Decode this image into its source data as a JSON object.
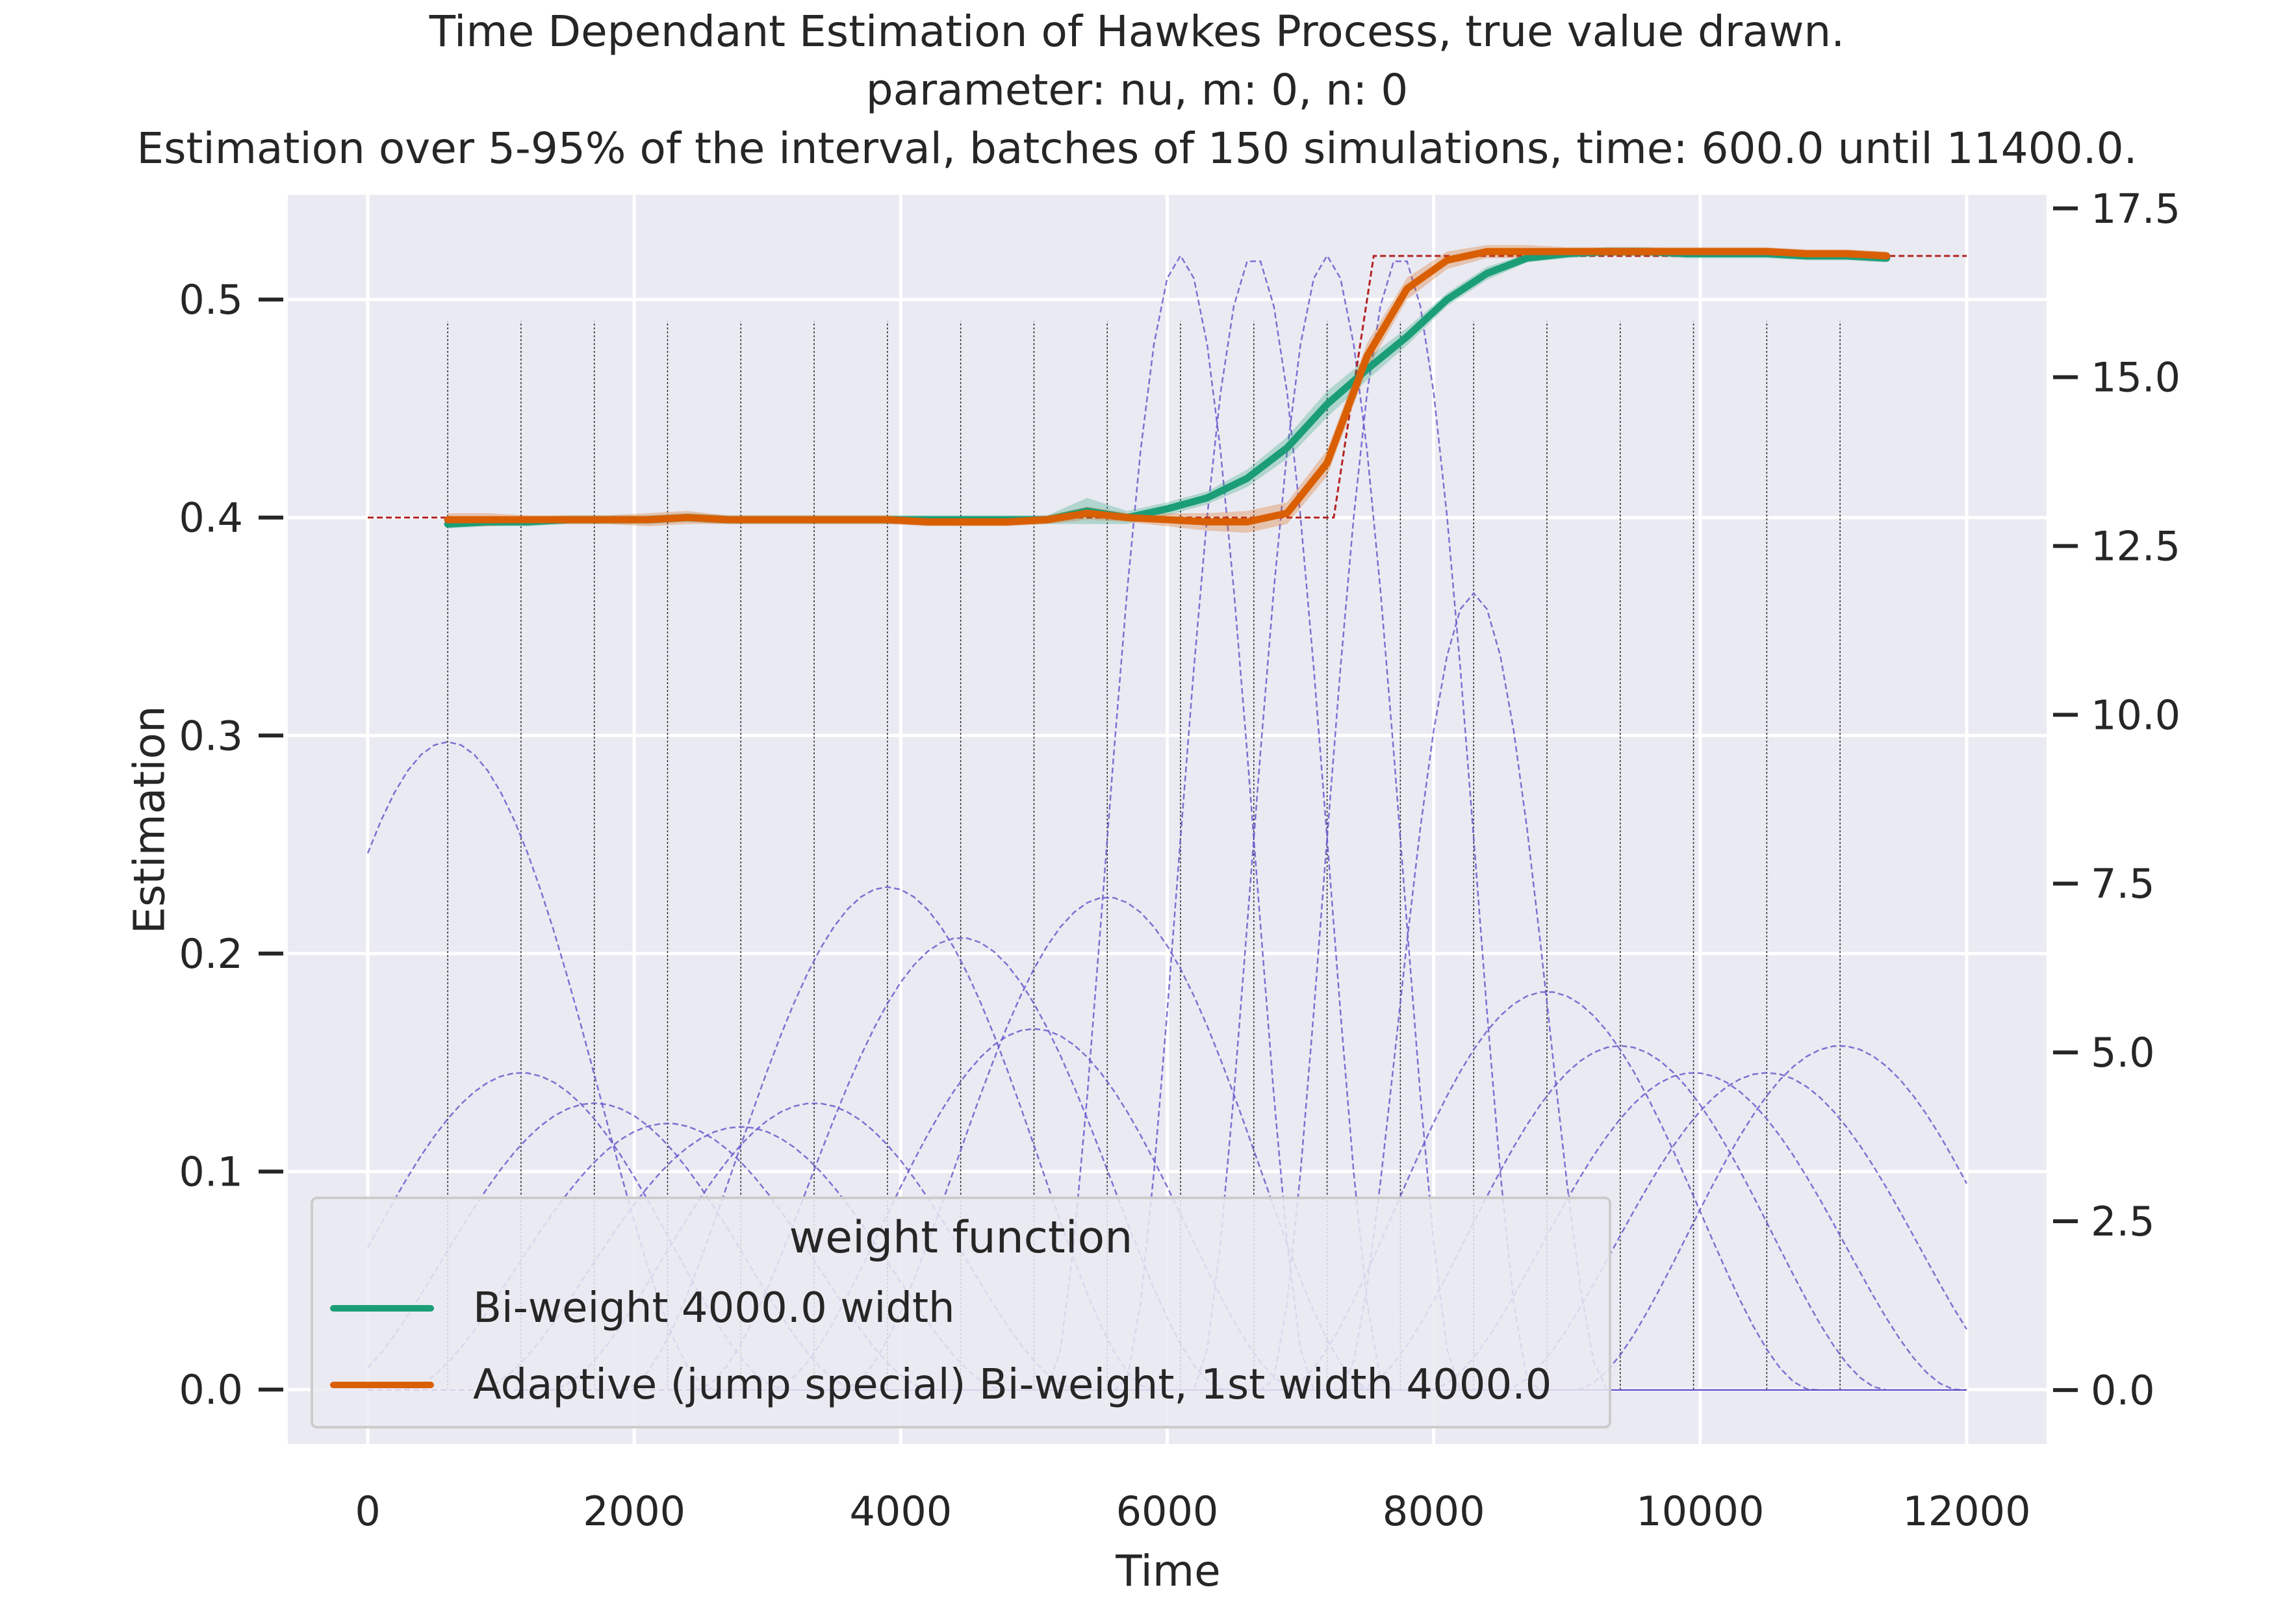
{
  "title_lines": [
    "Time Dependant Estimation of Hawkes Process, true value drawn.",
    "parameter: nu, m: 0, n: 0",
    "Estimation over 5-95% of the interval, batches of 150 simulations, time: 600.0 until 11400.0."
  ],
  "chart_data": {
    "type": "line",
    "xlabel": "Time",
    "ylabel": "Estimation",
    "xlim": [
      -600,
      12600
    ],
    "ylim": [
      -0.025,
      0.548
    ],
    "y2lim": [
      -0.8,
      17.7
    ],
    "x_ticks": [
      0,
      2000,
      4000,
      6000,
      8000,
      10000,
      12000
    ],
    "x_tick_labels": [
      "0",
      "2000",
      "4000",
      "6000",
      "8000",
      "10000",
      "12000"
    ],
    "y_ticks": [
      0.0,
      0.1,
      0.2,
      0.3,
      0.4,
      0.5
    ],
    "y_tick_labels": [
      "0.0",
      "0.1",
      "0.2",
      "0.3",
      "0.4",
      "0.5"
    ],
    "y2_ticks": [
      0.0,
      2.5,
      5.0,
      7.5,
      10.0,
      12.5,
      15.0,
      17.5
    ],
    "y2_tick_labels": [
      "0.0",
      "2.5",
      "5.0",
      "7.5",
      "10.0",
      "12.5",
      "15.0",
      "17.5"
    ],
    "grid": true,
    "legend_position": "lower-left",
    "legend_title": "weight function",
    "series": [
      {
        "name": "Bi-weight 4000.0 width",
        "color": "#1b9e77",
        "x": [
          600,
          900,
          1200,
          1500,
          1800,
          2100,
          2400,
          2700,
          3000,
          3300,
          3600,
          3900,
          4200,
          4500,
          4800,
          5100,
          5400,
          5700,
          6000,
          6300,
          6600,
          6900,
          7200,
          7500,
          7800,
          8100,
          8400,
          8700,
          9000,
          9300,
          9600,
          9900,
          10200,
          10500,
          10800,
          11100,
          11400
        ],
        "values": [
          0.397,
          0.398,
          0.398,
          0.399,
          0.399,
          0.399,
          0.4,
          0.399,
          0.399,
          0.399,
          0.399,
          0.399,
          0.399,
          0.399,
          0.399,
          0.399,
          0.403,
          0.4,
          0.404,
          0.409,
          0.418,
          0.432,
          0.452,
          0.468,
          0.483,
          0.5,
          0.512,
          0.519,
          0.521,
          0.522,
          0.522,
          0.521,
          0.521,
          0.521,
          0.52,
          0.52,
          0.519
        ],
        "ci_halfwidth": [
          0.002,
          0.002,
          0.002,
          0.002,
          0.002,
          0.002,
          0.002,
          0.002,
          0.002,
          0.002,
          0.002,
          0.002,
          0.002,
          0.002,
          0.002,
          0.002,
          0.006,
          0.003,
          0.003,
          0.003,
          0.004,
          0.005,
          0.006,
          0.005,
          0.004,
          0.003,
          0.003,
          0.002,
          0.002,
          0.002,
          0.002,
          0.002,
          0.002,
          0.002,
          0.002,
          0.002,
          0.002
        ]
      },
      {
        "name": "Adaptive (jump special) Bi-weight, 1st width 4000.0",
        "color": "#d95f02",
        "x": [
          600,
          900,
          1200,
          1500,
          1800,
          2100,
          2400,
          2700,
          3000,
          3300,
          3600,
          3900,
          4200,
          4500,
          4800,
          5100,
          5400,
          5700,
          6000,
          6300,
          6600,
          6900,
          7200,
          7500,
          7800,
          8100,
          8400,
          8700,
          9000,
          9300,
          9600,
          9900,
          10200,
          10500,
          10800,
          11100,
          11400
        ],
        "values": [
          0.399,
          0.399,
          0.399,
          0.399,
          0.399,
          0.399,
          0.4,
          0.399,
          0.399,
          0.399,
          0.399,
          0.399,
          0.398,
          0.398,
          0.398,
          0.399,
          0.402,
          0.4,
          0.399,
          0.398,
          0.398,
          0.402,
          0.425,
          0.474,
          0.505,
          0.518,
          0.522,
          0.522,
          0.522,
          0.522,
          0.522,
          0.522,
          0.522,
          0.522,
          0.521,
          0.521,
          0.52
        ],
        "ci_halfwidth": [
          0.003,
          0.003,
          0.002,
          0.002,
          0.002,
          0.003,
          0.003,
          0.002,
          0.002,
          0.002,
          0.002,
          0.002,
          0.002,
          0.002,
          0.002,
          0.002,
          0.003,
          0.002,
          0.003,
          0.004,
          0.005,
          0.005,
          0.006,
          0.006,
          0.005,
          0.004,
          0.003,
          0.003,
          0.002,
          0.002,
          0.002,
          0.002,
          0.002,
          0.002,
          0.002,
          0.002,
          0.002
        ]
      }
    ],
    "true_value": {
      "color": "#b22222",
      "style": "dashed",
      "x": [
        0,
        7250,
        7250,
        7550,
        7550,
        12000
      ],
      "values": [
        0.4,
        0.4,
        0.4,
        0.52,
        0.52,
        0.52
      ]
    },
    "estimation_times": [
      600,
      1150,
      1700,
      2250,
      2800,
      3350,
      3900,
      4450,
      5000,
      5550,
      6100,
      6650,
      7200,
      7750,
      8300,
      8850,
      9400,
      9950,
      10500,
      11050
    ],
    "kernels_axis": "right",
    "kernels": {
      "color": "#6a5acd",
      "style": "dashed",
      "items": [
        {
          "center": 600,
          "half_width": 2000,
          "height": 9.6
        },
        {
          "center": 1150,
          "half_width": 2000,
          "height": 4.7
        },
        {
          "center": 1700,
          "half_width": 2000,
          "height": 4.25
        },
        {
          "center": 2250,
          "half_width": 2000,
          "height": 3.95
        },
        {
          "center": 2800,
          "half_width": 2000,
          "height": 3.9
        },
        {
          "center": 3350,
          "half_width": 2000,
          "height": 4.25
        },
        {
          "center": 3900,
          "half_width": 2000,
          "height": 7.45
        },
        {
          "center": 4450,
          "half_width": 2000,
          "height": 6.7
        },
        {
          "center": 5000,
          "half_width": 2000,
          "height": 5.35
        },
        {
          "center": 5550,
          "half_width": 2000,
          "height": 7.3
        },
        {
          "center": 6100,
          "half_width": 1000,
          "height": 16.8
        },
        {
          "center": 6650,
          "half_width": 1000,
          "height": 16.8
        },
        {
          "center": 7200,
          "half_width": 1000,
          "height": 16.8
        },
        {
          "center": 7750,
          "half_width": 1000,
          "height": 16.8
        },
        {
          "center": 8300,
          "half_width": 1000,
          "height": 11.8
        },
        {
          "center": 8850,
          "half_width": 2000,
          "height": 5.9
        },
        {
          "center": 9400,
          "half_width": 2000,
          "height": 5.1
        },
        {
          "center": 9950,
          "half_width": 2000,
          "height": 4.7
        },
        {
          "center": 10500,
          "half_width": 2000,
          "height": 4.7
        },
        {
          "center": 11050,
          "half_width": 2000,
          "height": 5.1
        }
      ]
    }
  }
}
